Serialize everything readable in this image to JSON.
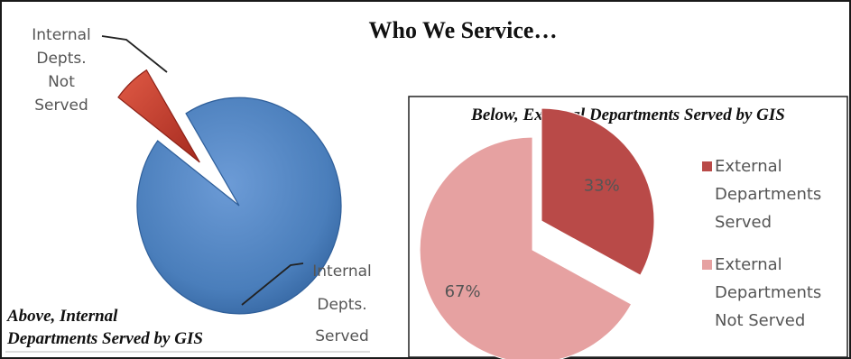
{
  "page": {
    "title": "Who We Service…",
    "border_color": "#1a1a1a"
  },
  "chart_data": [
    {
      "type": "pie",
      "title": "",
      "caption": [
        "Above, Internal",
        "Departments Served by GIS"
      ],
      "slices": [
        {
          "label": [
            "Internal",
            "Depts.",
            "Served"
          ],
          "value": 94,
          "color": "#4a7ebb",
          "edge_color": "#2f5f9a",
          "exploded": false
        },
        {
          "label": [
            "Internal",
            "Depts.",
            "Not",
            "Served"
          ],
          "value": 6,
          "color": "#c0392b",
          "edge_color": "#8e2218",
          "exploded": true
        }
      ]
    },
    {
      "type": "pie",
      "title": "Below, External Departments Served by GIS",
      "slices": [
        {
          "label": "External Departments Served",
          "label_lines": [
            "External",
            "Departments",
            "Served"
          ],
          "value": 33,
          "value_label": "33%",
          "color": "#b94a48"
        },
        {
          "label": "External Departments Not Served",
          "label_lines": [
            "External",
            "Departments",
            "Not Served"
          ],
          "value": 67,
          "value_label": "67%",
          "color": "#e6a1a1"
        }
      ],
      "legend": {
        "position": "right"
      }
    }
  ]
}
